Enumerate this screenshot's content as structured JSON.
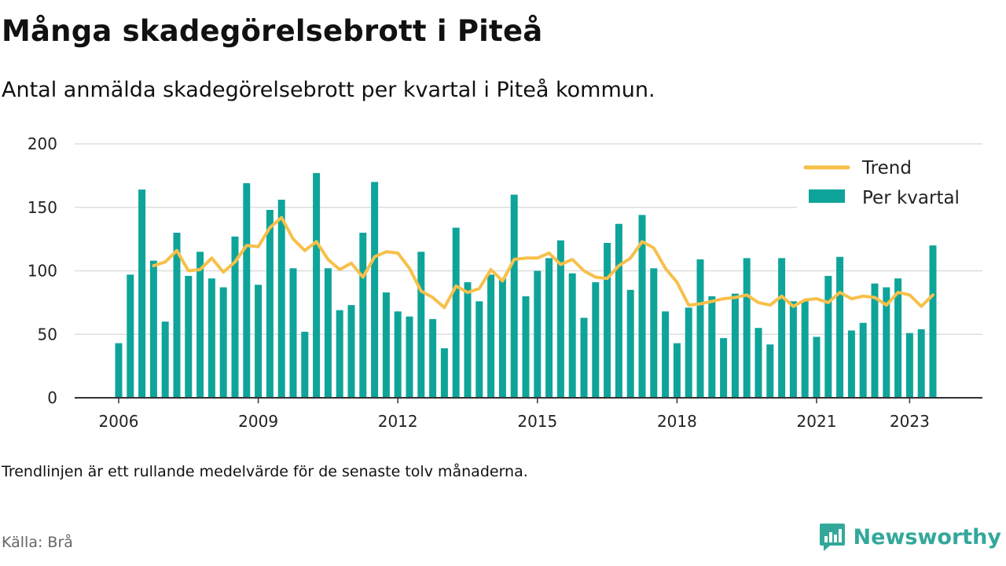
{
  "header": {
    "title": "Många skadegörelsebrott i Piteå",
    "subtitle": "Antal anmälda skadegörelsebrott per kvartal i Piteå kommun."
  },
  "footer": {
    "note": "Trendlinjen är ett rullande medelvärde för de senaste tolv månaderna.",
    "source": "Källa: Brå",
    "brand": "Newsworthy",
    "brand_icon": "newsworthy-logo-icon"
  },
  "colors": {
    "bar": "#0fa49a",
    "trend": "#f7c04a",
    "grid": "#dddddd",
    "axis": "#333333",
    "brand": "#33a89a"
  },
  "chart_data": {
    "type": "bar",
    "title": "",
    "xlabel": "",
    "ylabel": "",
    "ylim": [
      0,
      200
    ],
    "yticks": [
      0,
      50,
      100,
      150,
      200
    ],
    "xticks": [
      2006,
      2009,
      2012,
      2015,
      2018,
      2021,
      2023
    ],
    "grid": true,
    "legend_position": "top-right",
    "categories": [
      "2006 Q1",
      "2006 Q2",
      "2006 Q3",
      "2006 Q4",
      "2007 Q1",
      "2007 Q2",
      "2007 Q3",
      "2007 Q4",
      "2008 Q1",
      "2008 Q2",
      "2008 Q3",
      "2008 Q4",
      "2009 Q1",
      "2009 Q2",
      "2009 Q3",
      "2009 Q4",
      "2010 Q1",
      "2010 Q2",
      "2010 Q3",
      "2010 Q4",
      "2011 Q1",
      "2011 Q2",
      "2011 Q3",
      "2011 Q4",
      "2012 Q1",
      "2012 Q2",
      "2012 Q3",
      "2012 Q4",
      "2013 Q1",
      "2013 Q2",
      "2013 Q3",
      "2013 Q4",
      "2014 Q1",
      "2014 Q2",
      "2014 Q3",
      "2014 Q4",
      "2015 Q1",
      "2015 Q2",
      "2015 Q3",
      "2015 Q4",
      "2016 Q1",
      "2016 Q2",
      "2016 Q3",
      "2016 Q4",
      "2017 Q1",
      "2017 Q2",
      "2017 Q3",
      "2017 Q4",
      "2018 Q1",
      "2018 Q2",
      "2018 Q3",
      "2018 Q4",
      "2019 Q1",
      "2019 Q2",
      "2019 Q3",
      "2019 Q4",
      "2020 Q1",
      "2020 Q2",
      "2020 Q3",
      "2020 Q4",
      "2021 Q1",
      "2021 Q2",
      "2021 Q3",
      "2021 Q4",
      "2022 Q1",
      "2022 Q2",
      "2022 Q3",
      "2022 Q4",
      "2023 Q1",
      "2023 Q2",
      "2023 Q3"
    ],
    "series": [
      {
        "name": "Per kvartal",
        "type": "bar",
        "values": [
          43,
          97,
          164,
          108,
          60,
          130,
          96,
          115,
          94,
          87,
          127,
          169,
          89,
          148,
          156,
          102,
          52,
          177,
          102,
          69,
          73,
          130,
          170,
          83,
          68,
          64,
          115,
          62,
          39,
          134,
          91,
          76,
          97,
          94,
          160,
          80,
          100,
          110,
          124,
          98,
          63,
          91,
          122,
          137,
          85,
          144,
          102,
          68,
          43,
          71,
          109,
          80,
          47,
          82,
          110,
          55,
          42,
          110,
          76,
          76,
          48,
          96,
          111,
          53,
          59,
          90,
          87,
          94,
          51,
          54,
          120
        ]
      },
      {
        "name": "Trend",
        "type": "line",
        "values": [
          null,
          null,
          null,
          104,
          107,
          116,
          100,
          101,
          110,
          99,
          107,
          120,
          119,
          134,
          142,
          125,
          116,
          123,
          109,
          101,
          106,
          95,
          111,
          115,
          114,
          102,
          84,
          79,
          71,
          88,
          83,
          86,
          101,
          92,
          109,
          110,
          110,
          114,
          105,
          109,
          100,
          95,
          94,
          104,
          110,
          123,
          118,
          102,
          91,
          73,
          74,
          76,
          78,
          79,
          81,
          75,
          73,
          80,
          72,
          77,
          78,
          75,
          83,
          78,
          80,
          79,
          73,
          83,
          81,
          72,
          81
        ]
      }
    ]
  }
}
